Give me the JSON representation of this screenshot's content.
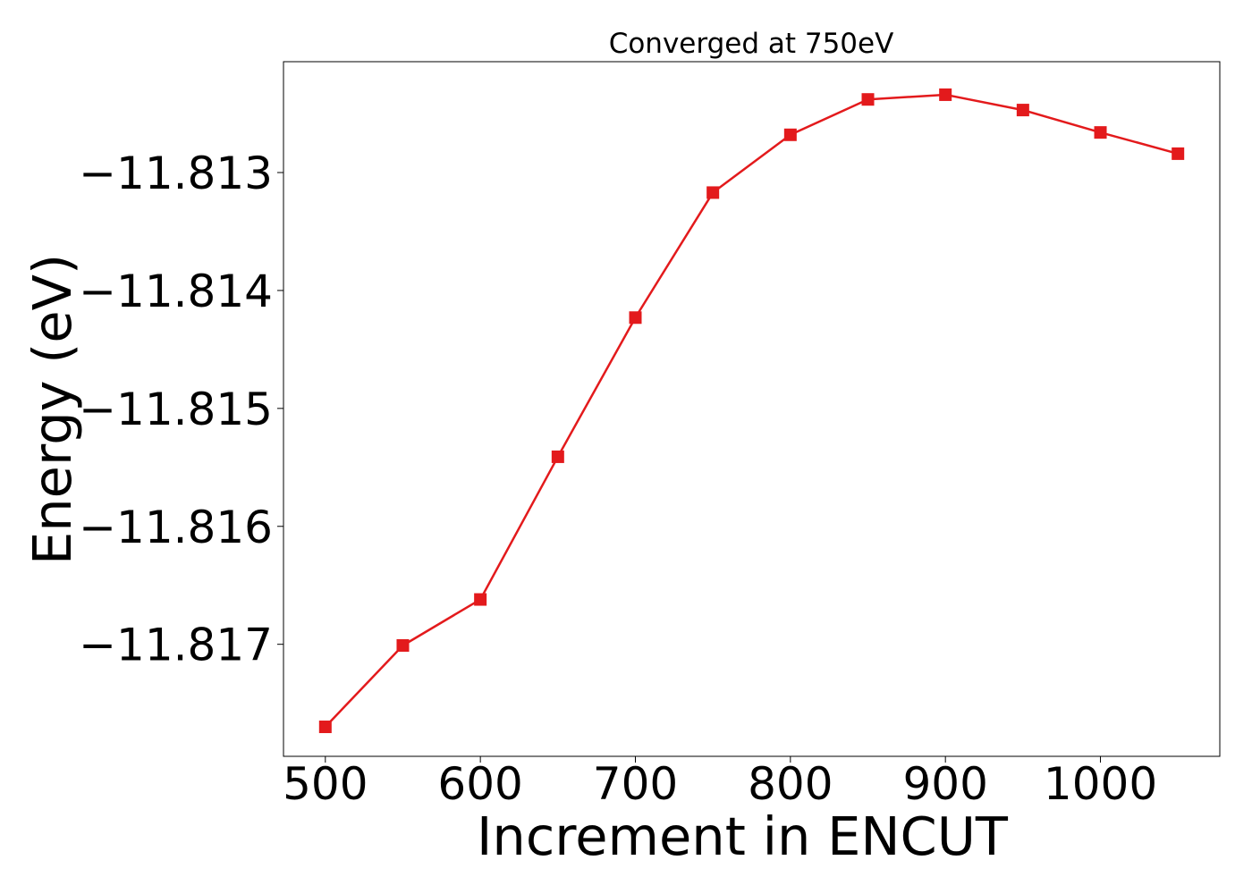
{
  "chart_data": {
    "type": "line",
    "title": "Converged at 750eV",
    "xlabel": "Increment in ENCUT",
    "ylabel": "Energy (eV)",
    "xlim": [
      473,
      1077
    ],
    "ylim": [
      -11.81795,
      -11.81206
    ],
    "x_ticks": [
      500,
      600,
      700,
      800,
      900,
      1000
    ],
    "x_tick_labels": [
      "500",
      "600",
      "700",
      "800",
      "900",
      "1000"
    ],
    "y_ticks": [
      -11.813,
      -11.814,
      -11.815,
      -11.816,
      -11.817
    ],
    "y_tick_labels": [
      "−11.813",
      "−11.814",
      "−11.815",
      "−11.816",
      "−11.817"
    ],
    "grid": false,
    "series": [
      {
        "color": "#e31a1c",
        "marker": "square",
        "x": [
          500,
          550,
          600,
          650,
          700,
          750,
          800,
          850,
          900,
          950,
          1000,
          1050
        ],
        "y": [
          -11.8177,
          -11.81701,
          -11.81662,
          -11.81541,
          -11.81423,
          -11.81317,
          -11.81268,
          -11.81238,
          -11.81234,
          -11.81247,
          -11.81266,
          -11.81284
        ]
      }
    ]
  }
}
